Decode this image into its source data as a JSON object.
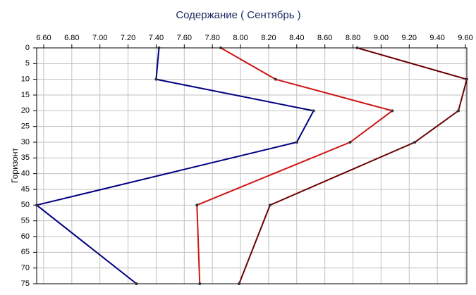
{
  "chart_data": {
    "type": "line",
    "title": "Содержание    ( Сентябрь )",
    "y_label": "Горизонт",
    "depth": [
      0,
      10,
      20,
      30,
      50,
      75
    ],
    "series": [
      {
        "color": "#000080",
        "values": [
          7.42,
          7.4,
          8.52,
          8.4,
          6.55,
          7.26
        ]
      },
      {
        "color": "#d01414",
        "values": [
          7.86,
          8.25,
          9.08,
          8.78,
          7.69,
          7.71
        ]
      },
      {
        "color": "#6b0000",
        "values": [
          8.83,
          9.61,
          9.55,
          9.24,
          8.21,
          7.99
        ]
      }
    ],
    "xlim": [
      6.55,
      9.61
    ],
    "xticks": [
      {
        "value": 6.6,
        "label": "6.60"
      },
      {
        "value": 6.8,
        "label": "6.80"
      },
      {
        "value": 7.0,
        "label": "7.00"
      },
      {
        "value": 7.2,
        "label": "7.20"
      },
      {
        "value": 7.4,
        "label": "7.40"
      },
      {
        "value": 7.6,
        "label": "7.60"
      },
      {
        "value": 7.8,
        "label": "7.80"
      },
      {
        "value": 8.0,
        "label": "8.00"
      },
      {
        "value": 8.2,
        "label": "8.20"
      },
      {
        "value": 8.4,
        "label": "8.40"
      },
      {
        "value": 8.6,
        "label": "8.60"
      },
      {
        "value": 8.8,
        "label": "8.80"
      },
      {
        "value": 9.0,
        "label": "9.00"
      },
      {
        "value": 9.2,
        "label": "9.20"
      },
      {
        "value": 9.4,
        "label": "9.40"
      },
      {
        "value": 9.6,
        "label": "9.60"
      }
    ],
    "ylim": [
      0,
      75
    ],
    "yticks": [
      0,
      5,
      10,
      15,
      20,
      25,
      30,
      35,
      40,
      45,
      50,
      55,
      60,
      65,
      70,
      75
    ],
    "y_inverted": true,
    "grid": true
  }
}
